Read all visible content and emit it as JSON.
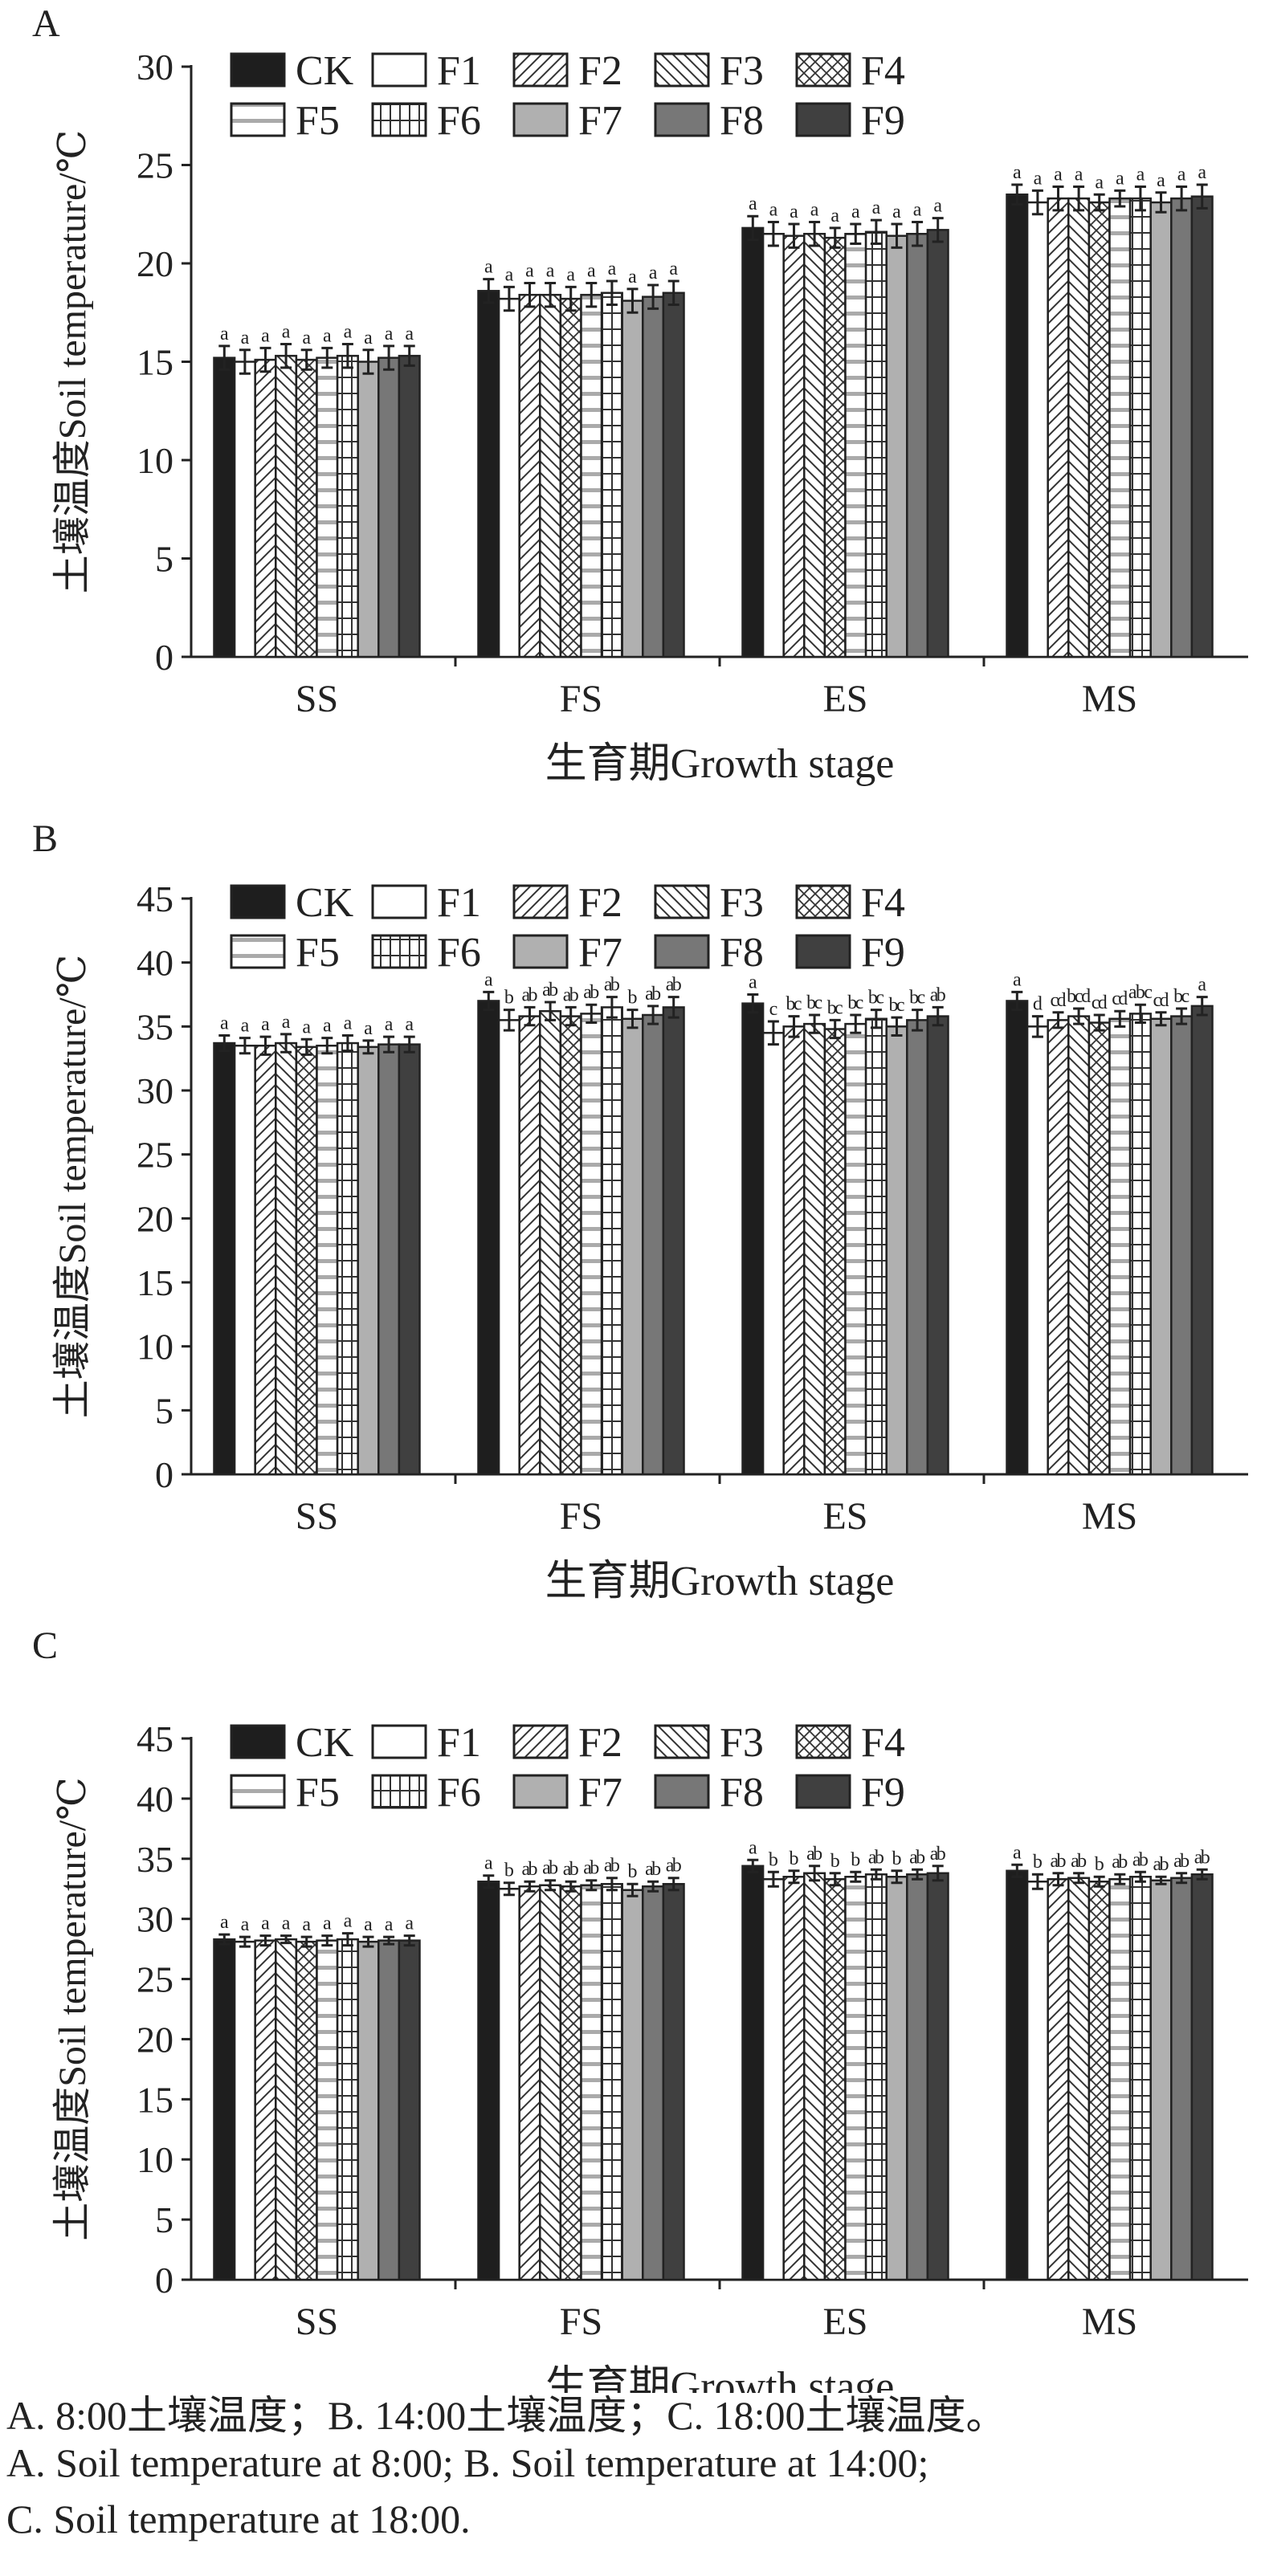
{
  "legend": {
    "items": [
      {
        "name": "CK",
        "fill": "#1e1e1e",
        "pattern": "solid"
      },
      {
        "name": "F1",
        "fill": "#ffffff",
        "pattern": "solid"
      },
      {
        "name": "F2",
        "fill": "#ffffff",
        "pattern": "diag-right"
      },
      {
        "name": "F3",
        "fill": "#ffffff",
        "pattern": "diag-left"
      },
      {
        "name": "F4",
        "fill": "#ffffff",
        "pattern": "cross-diag"
      },
      {
        "name": "F5",
        "fill": "#ffffff",
        "pattern": "horizontal"
      },
      {
        "name": "F6",
        "fill": "#ffffff",
        "pattern": "grid"
      },
      {
        "name": "F7",
        "fill": "#b0b0b0",
        "pattern": "solid"
      },
      {
        "name": "F8",
        "fill": "#777777",
        "pattern": "solid"
      },
      {
        "name": "F9",
        "fill": "#404040",
        "pattern": "solid"
      }
    ],
    "placement": "top-left"
  },
  "chart_data": [
    {
      "type": "bar",
      "panel": "A",
      "xlabel": "生育期Growth stage",
      "ylabel": "土壤温度Soil temperature/℃",
      "categories": [
        "SS",
        "FS",
        "ES",
        "MS"
      ],
      "ylim": [
        0,
        30
      ],
      "yticks": [
        0,
        5,
        10,
        15,
        20,
        25,
        30
      ],
      "grid": false,
      "series": [
        {
          "name": "CK",
          "values": [
            15.2,
            18.6,
            21.8,
            23.5
          ],
          "errors": [
            0.6,
            0.6,
            0.6,
            0.5
          ],
          "letters": [
            "a",
            "a",
            "a",
            "a"
          ]
        },
        {
          "name": "F1",
          "values": [
            15.0,
            18.2,
            21.5,
            23.1
          ],
          "errors": [
            0.6,
            0.6,
            0.6,
            0.6
          ],
          "letters": [
            "a",
            "a",
            "a",
            "a"
          ]
        },
        {
          "name": "F2",
          "values": [
            15.1,
            18.4,
            21.4,
            23.3
          ],
          "errors": [
            0.6,
            0.6,
            0.6,
            0.6
          ],
          "letters": [
            "a",
            "a",
            "a",
            "a"
          ]
        },
        {
          "name": "F3",
          "values": [
            15.3,
            18.4,
            21.5,
            23.3
          ],
          "errors": [
            0.6,
            0.6,
            0.6,
            0.6
          ],
          "letters": [
            "a",
            "a",
            "a",
            "a"
          ]
        },
        {
          "name": "F4",
          "values": [
            15.1,
            18.2,
            21.3,
            23.1
          ],
          "errors": [
            0.5,
            0.6,
            0.5,
            0.4
          ],
          "letters": [
            "a",
            "a",
            "a",
            "a"
          ]
        },
        {
          "name": "F5",
          "values": [
            15.2,
            18.4,
            21.5,
            23.3
          ],
          "errors": [
            0.5,
            0.6,
            0.5,
            0.4
          ],
          "letters": [
            "a",
            "a",
            "a",
            "a"
          ]
        },
        {
          "name": "F6",
          "values": [
            15.3,
            18.5,
            21.6,
            23.3
          ],
          "errors": [
            0.6,
            0.6,
            0.6,
            0.6
          ],
          "letters": [
            "a",
            "a",
            "a",
            "a"
          ]
        },
        {
          "name": "F7",
          "values": [
            15.0,
            18.1,
            21.4,
            23.1
          ],
          "errors": [
            0.6,
            0.6,
            0.6,
            0.5
          ],
          "letters": [
            "a",
            "a",
            "a",
            "a"
          ]
        },
        {
          "name": "F8",
          "values": [
            15.2,
            18.3,
            21.5,
            23.3
          ],
          "errors": [
            0.6,
            0.6,
            0.6,
            0.6
          ],
          "letters": [
            "a",
            "a",
            "a",
            "a"
          ]
        },
        {
          "name": "F9",
          "values": [
            15.3,
            18.5,
            21.7,
            23.4
          ],
          "errors": [
            0.5,
            0.6,
            0.6,
            0.6
          ],
          "letters": [
            "a",
            "a",
            "a",
            "a"
          ]
        }
      ]
    },
    {
      "type": "bar",
      "panel": "B",
      "xlabel": "生育期Growth stage",
      "ylabel": "土壤温度Soil temperature/℃",
      "categories": [
        "SS",
        "FS",
        "ES",
        "MS"
      ],
      "ylim": [
        0,
        45
      ],
      "yticks": [
        0,
        5,
        10,
        15,
        20,
        25,
        30,
        35,
        40,
        45
      ],
      "grid": false,
      "series": [
        {
          "name": "CK",
          "values": [
            33.7,
            37.0,
            36.8,
            37.0
          ],
          "errors": [
            0.6,
            0.7,
            0.7,
            0.7
          ],
          "letters": [
            "a",
            "a",
            "a",
            "a"
          ]
        },
        {
          "name": "F1",
          "values": [
            33.5,
            35.5,
            34.5,
            35.0
          ],
          "errors": [
            0.6,
            0.8,
            0.9,
            0.8
          ],
          "letters": [
            "a",
            "b",
            "c",
            "d"
          ]
        },
        {
          "name": "F2",
          "values": [
            33.5,
            35.8,
            35.0,
            35.5
          ],
          "errors": [
            0.7,
            0.7,
            0.8,
            0.6
          ],
          "letters": [
            "a",
            "ab",
            "bc",
            "cd"
          ]
        },
        {
          "name": "F3",
          "values": [
            33.7,
            36.2,
            35.2,
            35.8
          ],
          "errors": [
            0.7,
            0.7,
            0.7,
            0.6
          ],
          "letters": [
            "a",
            "ab",
            "bc",
            "bcd"
          ]
        },
        {
          "name": "F4",
          "values": [
            33.4,
            35.8,
            34.8,
            35.3
          ],
          "errors": [
            0.6,
            0.7,
            0.7,
            0.6
          ],
          "letters": [
            "a",
            "ab",
            "bc",
            "cd"
          ]
        },
        {
          "name": "F5",
          "values": [
            33.5,
            36.0,
            35.2,
            35.6
          ],
          "errors": [
            0.6,
            0.7,
            0.7,
            0.6
          ],
          "letters": [
            "a",
            "ab",
            "bc",
            "cd"
          ]
        },
        {
          "name": "F6",
          "values": [
            33.7,
            36.5,
            35.6,
            36.0
          ],
          "errors": [
            0.6,
            0.8,
            0.7,
            0.7
          ],
          "letters": [
            "a",
            "ab",
            "bc",
            "abc"
          ]
        },
        {
          "name": "F7",
          "values": [
            33.4,
            35.6,
            35.0,
            35.6
          ],
          "errors": [
            0.5,
            0.7,
            0.7,
            0.5
          ],
          "letters": [
            "a",
            "b",
            "bc",
            "cd"
          ]
        },
        {
          "name": "F8",
          "values": [
            33.6,
            35.9,
            35.5,
            35.8
          ],
          "errors": [
            0.6,
            0.7,
            0.8,
            0.6
          ],
          "letters": [
            "a",
            "ab",
            "bc",
            "bc"
          ]
        },
        {
          "name": "F9",
          "values": [
            33.6,
            36.5,
            35.8,
            36.6
          ],
          "errors": [
            0.6,
            0.8,
            0.7,
            0.7
          ],
          "letters": [
            "a",
            "ab",
            "ab",
            "a"
          ]
        }
      ]
    },
    {
      "type": "bar",
      "panel": "C",
      "xlabel": "生育期Growth stage",
      "ylabel": "土壤温度Soil temperature/℃",
      "categories": [
        "SS",
        "FS",
        "ES",
        "MS"
      ],
      "ylim": [
        0,
        45
      ],
      "yticks": [
        0,
        5,
        10,
        15,
        20,
        25,
        30,
        35,
        40,
        45
      ],
      "grid": false,
      "series": [
        {
          "name": "CK",
          "values": [
            28.3,
            33.1,
            34.4,
            34.0
          ],
          "errors": [
            0.4,
            0.5,
            0.5,
            0.5
          ],
          "letters": [
            "a",
            "a",
            "a",
            "a"
          ]
        },
        {
          "name": "F1",
          "values": [
            28.1,
            32.5,
            33.3,
            33.1
          ],
          "errors": [
            0.4,
            0.5,
            0.6,
            0.6
          ],
          "letters": [
            "a",
            "b",
            "b",
            "b"
          ]
        },
        {
          "name": "F2",
          "values": [
            28.2,
            32.7,
            33.5,
            33.3
          ],
          "errors": [
            0.4,
            0.4,
            0.5,
            0.5
          ],
          "letters": [
            "a",
            "ab",
            "b",
            "ab"
          ]
        },
        {
          "name": "F3",
          "values": [
            28.3,
            32.8,
            33.8,
            33.4
          ],
          "errors": [
            0.3,
            0.4,
            0.6,
            0.4
          ],
          "letters": [
            "a",
            "ab",
            "ab",
            "ab"
          ]
        },
        {
          "name": "F4",
          "values": [
            28.1,
            32.7,
            33.3,
            33.1
          ],
          "errors": [
            0.4,
            0.4,
            0.5,
            0.4
          ],
          "letters": [
            "a",
            "ab",
            "b",
            "b"
          ]
        },
        {
          "name": "F5",
          "values": [
            28.2,
            32.8,
            33.5,
            33.3
          ],
          "errors": [
            0.4,
            0.4,
            0.4,
            0.4
          ],
          "letters": [
            "a",
            "ab",
            "b",
            "ab"
          ]
        },
        {
          "name": "F6",
          "values": [
            28.3,
            32.9,
            33.7,
            33.5
          ],
          "errors": [
            0.5,
            0.5,
            0.4,
            0.4
          ],
          "letters": [
            "a",
            "ab",
            "ab",
            "ab"
          ]
        },
        {
          "name": "F7",
          "values": [
            28.1,
            32.4,
            33.5,
            33.2
          ],
          "errors": [
            0.4,
            0.5,
            0.5,
            0.3
          ],
          "letters": [
            "a",
            "b",
            "b",
            "ab"
          ]
        },
        {
          "name": "F8",
          "values": [
            28.2,
            32.7,
            33.7,
            33.4
          ],
          "errors": [
            0.3,
            0.4,
            0.4,
            0.4
          ],
          "letters": [
            "a",
            "ab",
            "ab",
            "ab"
          ]
        },
        {
          "name": "F9",
          "values": [
            28.2,
            32.9,
            33.8,
            33.7
          ],
          "errors": [
            0.4,
            0.5,
            0.6,
            0.4
          ],
          "letters": [
            "a",
            "ab",
            "ab",
            "ab"
          ]
        }
      ]
    }
  ],
  "captions": {
    "zh": "A. 8:00土壤温度；B. 14:00土壤温度；C. 18:00土壤温度。",
    "en1": "A. Soil temperature at 8:00; B. Soil temperature at 14:00;",
    "en2": "C. Soil temperature at 18:00."
  }
}
